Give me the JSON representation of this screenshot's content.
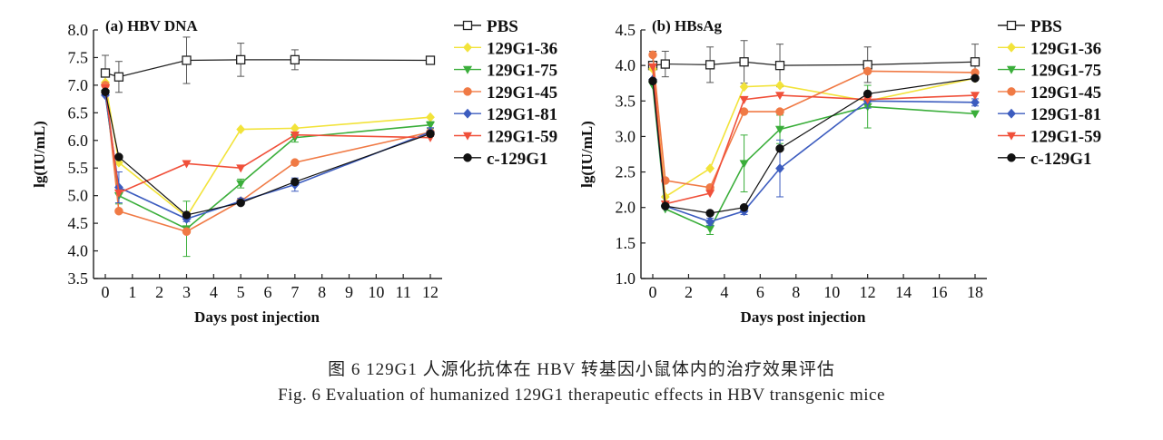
{
  "caption": {
    "cn": "图 6 129G1 人源化抗体在 HBV 转基因小鼠体内的治疗效果评估",
    "en": "Fig. 6 Evaluation of humanized 129G1 therapeutic effects in HBV transgenic mice"
  },
  "colors": {
    "PBS": "#222222",
    "129G1-36": "#f2e33a",
    "129G1-75": "#3aae3a",
    "129G1-45": "#f07a45",
    "129G1-81": "#3c5cbf",
    "129G1-59": "#f0503a",
    "c-129G1": "#111111"
  },
  "chart_data": [
    {
      "type": "line",
      "panel_label": "(a) HBV DNA",
      "xlabel": "Days post injection",
      "ylabel": "lg(IU/mL)",
      "xlim": [
        0,
        12
      ],
      "ylim": [
        3.5,
        8.0
      ],
      "xticks": [
        0,
        1,
        2,
        3,
        4,
        5,
        6,
        7,
        8,
        9,
        10,
        11,
        12
      ],
      "yticks": [
        3.5,
        4.0,
        4.5,
        5.0,
        5.5,
        6.0,
        6.5,
        7.0,
        7.5,
        8.0
      ],
      "ytick_labels": [
        "3.5",
        "4.0",
        "4.5",
        "5.0",
        "5.5",
        "6.0",
        "6.5",
        "7.0",
        "7.5",
        "8.0"
      ],
      "grid": false,
      "legend_position": "right",
      "series": [
        {
          "name": "PBS",
          "marker": "square-open",
          "x": [
            0,
            0.5,
            3,
            5,
            7,
            12
          ],
          "y": [
            7.22,
            7.15,
            7.45,
            7.46,
            7.46,
            7.45
          ],
          "err": [
            0.32,
            0.28,
            0.42,
            0.3,
            0.18,
            0.05
          ]
        },
        {
          "name": "129G1-36",
          "marker": "diamond",
          "x": [
            0,
            0.5,
            3,
            5,
            7,
            12
          ],
          "y": [
            7.05,
            5.6,
            4.62,
            6.2,
            6.22,
            6.42
          ],
          "err": [
            0,
            0,
            0,
            0,
            0,
            0
          ]
        },
        {
          "name": "129G1-75",
          "marker": "triangle-down",
          "x": [
            0,
            0.5,
            3,
            5,
            7,
            12
          ],
          "y": [
            6.85,
            5.0,
            4.4,
            5.22,
            6.05,
            6.28
          ],
          "err": [
            0,
            0.15,
            0.5,
            0.08,
            0.08,
            0.06
          ]
        },
        {
          "name": "129G1-45",
          "marker": "circle",
          "x": [
            0,
            0.5,
            3,
            5,
            7,
            12
          ],
          "y": [
            7.0,
            4.72,
            4.35,
            4.9,
            5.6,
            6.15
          ],
          "err": [
            0,
            0,
            0,
            0,
            0,
            0
          ]
        },
        {
          "name": "129G1-81",
          "marker": "diamond",
          "x": [
            0,
            0.5,
            3,
            5,
            7,
            12
          ],
          "y": [
            6.82,
            5.15,
            4.58,
            4.9,
            5.2,
            6.15
          ],
          "err": [
            0,
            0.28,
            0.05,
            0.05,
            0.12,
            0.08
          ]
        },
        {
          "name": "129G1-59",
          "marker": "triangle-down",
          "x": [
            0,
            0.5,
            3,
            5,
            7,
            12
          ],
          "y": [
            6.95,
            5.05,
            5.58,
            5.5,
            6.1,
            6.05
          ],
          "err": [
            0,
            0,
            0,
            0,
            0,
            0
          ]
        },
        {
          "name": "c-129G1",
          "marker": "circle",
          "x": [
            0,
            0.5,
            3,
            5,
            7,
            12
          ],
          "y": [
            6.88,
            5.7,
            4.65,
            4.87,
            5.25,
            6.12
          ],
          "err": [
            0,
            0,
            0,
            0,
            0,
            0
          ]
        }
      ]
    },
    {
      "type": "line",
      "panel_label": "(b) HBsAg",
      "xlabel": "Days post injection",
      "ylabel": "lg(IU/mL)",
      "xlim": [
        0,
        18
      ],
      "ylim": [
        1.0,
        4.5
      ],
      "xticks": [
        0,
        2,
        4,
        6,
        8,
        10,
        12,
        14,
        16,
        18
      ],
      "yticks": [
        1.0,
        1.5,
        2.0,
        2.5,
        3.0,
        3.5,
        4.0,
        4.5
      ],
      "ytick_labels": [
        "1.0",
        "1.5",
        "2.0",
        "2.5",
        "3.0",
        "3.5",
        "4.0",
        "4.5"
      ],
      "grid": false,
      "legend_position": "right",
      "series": [
        {
          "name": "PBS",
          "marker": "square-open",
          "x": [
            0,
            0.7,
            3.2,
            5.1,
            7.1,
            12,
            18
          ],
          "y": [
            4.0,
            4.02,
            4.01,
            4.05,
            4.0,
            4.01,
            4.05
          ],
          "err": [
            0.2,
            0.18,
            0.25,
            0.3,
            0.3,
            0.25,
            0.25
          ]
        },
        {
          "name": "129G1-36",
          "marker": "diamond",
          "x": [
            0,
            0.7,
            3.2,
            5.1,
            7.1,
            12,
            18
          ],
          "y": [
            3.95,
            2.15,
            2.55,
            3.7,
            3.72,
            3.5,
            3.82
          ],
          "err": [
            0,
            0,
            0,
            0,
            0,
            0,
            0
          ]
        },
        {
          "name": "129G1-75",
          "marker": "triangle-down",
          "x": [
            0,
            0.7,
            3.2,
            5.1,
            7.1,
            12,
            18
          ],
          "y": [
            3.72,
            1.98,
            1.7,
            2.62,
            3.1,
            3.42,
            3.32
          ],
          "err": [
            0,
            0,
            0.08,
            0.4,
            0.2,
            0.3,
            0
          ]
        },
        {
          "name": "129G1-45",
          "marker": "circle",
          "x": [
            0,
            0.7,
            3.2,
            5.1,
            7.1,
            12,
            18
          ],
          "y": [
            4.15,
            2.38,
            2.28,
            3.35,
            3.35,
            3.92,
            3.9
          ],
          "err": [
            0,
            0,
            0,
            0,
            0,
            0,
            0
          ]
        },
        {
          "name": "129G1-81",
          "marker": "diamond",
          "x": [
            0,
            0.7,
            3.2,
            5.1,
            7.1,
            12,
            18
          ],
          "y": [
            3.8,
            2.02,
            1.8,
            1.95,
            2.55,
            3.5,
            3.48
          ],
          "err": [
            0,
            0,
            0.05,
            0.05,
            0.4,
            0.1,
            0.05
          ]
        },
        {
          "name": "129G1-59",
          "marker": "triangle-down",
          "x": [
            0,
            0.7,
            3.2,
            5.1,
            7.1,
            12,
            18
          ],
          "y": [
            3.98,
            2.05,
            2.2,
            3.52,
            3.58,
            3.52,
            3.58
          ],
          "err": [
            0,
            0,
            0,
            0,
            0,
            0,
            0
          ]
        },
        {
          "name": "c-129G1",
          "marker": "circle",
          "x": [
            0,
            0.7,
            3.2,
            5.1,
            7.1,
            12,
            18
          ],
          "y": [
            3.78,
            2.02,
            1.92,
            2.0,
            2.83,
            3.6,
            3.82
          ],
          "err": [
            0,
            0,
            0,
            0,
            0,
            0,
            0
          ]
        }
      ]
    }
  ]
}
